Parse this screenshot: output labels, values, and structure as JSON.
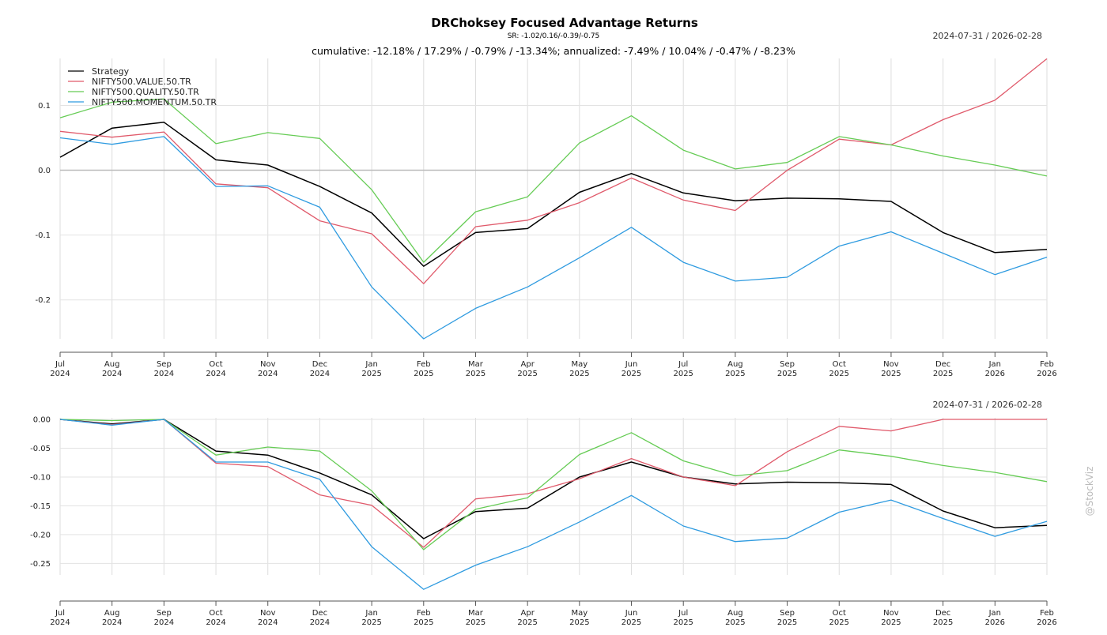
{
  "title": "DRChoksey Focused Advantage Returns",
  "sr_line": "SR: -1.02/0.16/-0.39/-0.75",
  "date_range": "2024-07-31 / 2026-02-28",
  "cumulative_line": "cumulative: -12.18% / 17.29% / -0.79% / -13.34%; annualized: -7.49% / 10.04% / -0.47% / -8.23%",
  "watermark": "@StockViz",
  "colors": {
    "Strategy": "#000000",
    "NIFTY500.VALUE.50.TR": "#e05a6b",
    "NIFTY500.QUALITY.50.TR": "#66cc55",
    "NIFTY500.MOMENTUM.50.TR": "#2f9be0"
  },
  "chart_data": [
    {
      "type": "line",
      "name": "cumulative-returns",
      "x_month": [
        "Jul",
        "Aug",
        "Sep",
        "Oct",
        "Nov",
        "Dec",
        "Jan",
        "Feb",
        "Mar",
        "Apr",
        "May",
        "Jun",
        "Jul",
        "Aug",
        "Sep",
        "Oct",
        "Nov",
        "Dec",
        "Jan",
        "Feb"
      ],
      "x_year": [
        "2024",
        "2024",
        "2024",
        "2024",
        "2024",
        "2024",
        "2025",
        "2025",
        "2025",
        "2025",
        "2025",
        "2025",
        "2025",
        "2025",
        "2025",
        "2025",
        "2025",
        "2025",
        "2026",
        "2026"
      ],
      "ylim": [
        -0.26,
        0.17
      ],
      "yticks": [
        0.1,
        0.0,
        -0.1,
        -0.2
      ],
      "ytick_labels": [
        "0.1",
        "0.0",
        "-0.1",
        "-0.2"
      ],
      "legend_position": "top-left",
      "series": [
        {
          "name": "Strategy",
          "values": [
            0.02,
            0.065,
            0.074,
            0.016,
            0.008,
            -0.025,
            -0.066,
            -0.148,
            -0.096,
            -0.09,
            -0.034,
            -0.005,
            -0.035,
            -0.047,
            -0.043,
            -0.044,
            -0.048,
            -0.096,
            -0.127,
            -0.122
          ]
        },
        {
          "name": "NIFTY500.VALUE.50.TR",
          "values": [
            0.06,
            0.051,
            0.059,
            -0.021,
            -0.027,
            -0.078,
            -0.098,
            -0.175,
            -0.087,
            -0.077,
            -0.05,
            -0.012,
            -0.046,
            -0.062,
            0.0,
            0.048,
            0.039,
            0.078,
            0.108,
            0.172
          ]
        },
        {
          "name": "NIFTY500.QUALITY.50.TR",
          "values": [
            0.081,
            0.105,
            0.11,
            0.041,
            0.058,
            0.049,
            -0.03,
            -0.142,
            -0.064,
            -0.041,
            0.042,
            0.084,
            0.031,
            0.002,
            0.012,
            0.052,
            0.039,
            0.022,
            0.008,
            -0.009
          ]
        },
        {
          "name": "NIFTY500.MOMENTUM.50.TR",
          "values": [
            0.05,
            0.04,
            0.052,
            -0.025,
            -0.024,
            -0.057,
            -0.18,
            -0.26,
            -0.213,
            -0.18,
            -0.135,
            -0.088,
            -0.142,
            -0.171,
            -0.165,
            -0.117,
            -0.095,
            -0.128,
            -0.161,
            -0.134
          ]
        }
      ]
    },
    {
      "type": "line",
      "name": "drawdowns",
      "x_month": [
        "Jul",
        "Aug",
        "Sep",
        "Oct",
        "Nov",
        "Dec",
        "Jan",
        "Feb",
        "Mar",
        "Apr",
        "May",
        "Jun",
        "Jul",
        "Aug",
        "Sep",
        "Oct",
        "Nov",
        "Dec",
        "Jan",
        "Feb"
      ],
      "x_year": [
        "2024",
        "2024",
        "2024",
        "2024",
        "2024",
        "2024",
        "2025",
        "2025",
        "2025",
        "2025",
        "2025",
        "2025",
        "2025",
        "2025",
        "2025",
        "2025",
        "2025",
        "2025",
        "2026",
        "2026"
      ],
      "ylim": [
        -0.27,
        0.0
      ],
      "yticks": [
        0.0,
        -0.05,
        -0.1,
        -0.15,
        -0.2,
        -0.25
      ],
      "ytick_labels": [
        "0.00",
        "-0.05",
        "-0.10",
        "-0.15",
        "-0.20",
        "-0.25"
      ],
      "series": [
        {
          "name": "Strategy",
          "values": [
            0,
            -0.008,
            0,
            -0.055,
            -0.062,
            -0.093,
            -0.131,
            -0.207,
            -0.16,
            -0.154,
            -0.1,
            -0.074,
            -0.1,
            -0.112,
            -0.109,
            -0.11,
            -0.113,
            -0.159,
            -0.188,
            -0.184
          ]
        },
        {
          "name": "NIFTY500.VALUE.50.TR",
          "values": [
            0,
            -0.009,
            0,
            -0.076,
            -0.082,
            -0.131,
            -0.149,
            -0.222,
            -0.138,
            -0.129,
            -0.103,
            -0.068,
            -0.1,
            -0.115,
            -0.056,
            -0.012,
            -0.02,
            0,
            0,
            0
          ]
        },
        {
          "name": "NIFTY500.QUALITY.50.TR",
          "values": [
            0,
            -0.002,
            0,
            -0.062,
            -0.048,
            -0.055,
            -0.124,
            -0.226,
            -0.156,
            -0.136,
            -0.061,
            -0.023,
            -0.072,
            -0.098,
            -0.089,
            -0.053,
            -0.064,
            -0.08,
            -0.092,
            -0.108
          ]
        },
        {
          "name": "NIFTY500.MOMENTUM.50.TR",
          "values": [
            0,
            -0.01,
            0,
            -0.074,
            -0.074,
            -0.104,
            -0.221,
            -0.295,
            -0.253,
            -0.221,
            -0.178,
            -0.132,
            -0.185,
            -0.212,
            -0.206,
            -0.161,
            -0.14,
            -0.172,
            -0.203,
            -0.177
          ]
        }
      ]
    }
  ]
}
